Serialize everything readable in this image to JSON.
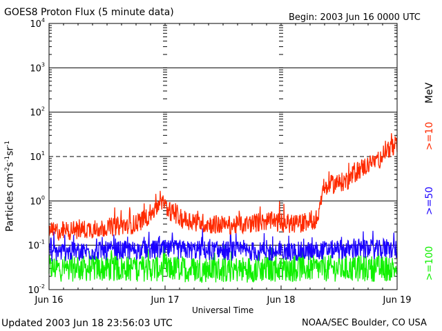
{
  "header": {
    "title": "GOES8 Proton Flux (5 minute data)",
    "begin": "Begin: 2003 Jun 16 0000 UTC"
  },
  "footer": {
    "updated": "Updated 2003 Jun 18 23:56:03 UTC",
    "credit": "NOAA/SEC Boulder, CO USA"
  },
  "chart_data": {
    "type": "line",
    "title": "GOES8 Proton Flux (5 minute data)",
    "xlabel": "Universal Time",
    "ylabel_text": "Particles cm",
    "ylabel_sup": [
      "-2",
      "-1",
      "-1"
    ],
    "ylabel_units": [
      "s",
      "sr"
    ],
    "y_scale": "log",
    "ylim": [
      0.01,
      10000
    ],
    "y_ticks": [
      {
        "base": "10",
        "exp": "4",
        "value": 10000
      },
      {
        "base": "10",
        "exp": "3",
        "value": 1000
      },
      {
        "base": "10",
        "exp": "2",
        "value": 100
      },
      {
        "base": "10",
        "exp": "1",
        "value": 10
      },
      {
        "base": "10",
        "exp": "0",
        "value": 1
      },
      {
        "base": "10",
        "exp": "-1",
        "value": 0.1
      },
      {
        "base": "10",
        "exp": "-2",
        "value": 0.01
      }
    ],
    "xlim": [
      "2003-06-16",
      "2003-06-19"
    ],
    "x_ticks": [
      "Jun 16",
      "Jun 17",
      "Jun 18",
      "Jun 19"
    ],
    "threshold_line": 10,
    "legend_unit": "MeV",
    "series": [
      {
        "name": ">=10",
        "color": "#ff2a00",
        "points": [
          [
            "2003-06-16T00:00",
            0.2
          ],
          [
            "2003-06-16T06:00",
            0.22
          ],
          [
            "2003-06-16T12:00",
            0.25
          ],
          [
            "2003-06-16T18:00",
            0.3
          ],
          [
            "2003-06-16T21:00",
            0.5
          ],
          [
            "2003-06-16T23:00",
            0.9
          ],
          [
            "2003-06-17T03:00",
            0.4
          ],
          [
            "2003-06-17T09:00",
            0.3
          ],
          [
            "2003-06-17T15:00",
            0.28
          ],
          [
            "2003-06-17T21:00",
            0.35
          ],
          [
            "2003-06-18T03:00",
            0.3
          ],
          [
            "2003-06-18T06:00",
            0.35
          ],
          [
            "2003-06-18T07:30",
            0.4
          ],
          [
            "2003-06-18T08:30",
            1.5
          ],
          [
            "2003-06-18T10:00",
            2.3
          ],
          [
            "2003-06-18T12:00",
            2.5
          ],
          [
            "2003-06-18T14:00",
            3.0
          ],
          [
            "2003-06-18T16:00",
            5.0
          ],
          [
            "2003-06-18T18:00",
            6.5
          ],
          [
            "2003-06-18T20:00",
            8.0
          ],
          [
            "2003-06-18T22:00",
            15.0
          ],
          [
            "2003-06-18T24:00",
            16.0
          ]
        ]
      },
      {
        "name": ">=50",
        "color": "#1a00ff",
        "points": [
          [
            "2003-06-16T00:00",
            0.07
          ],
          [
            "2003-06-16T12:00",
            0.075
          ],
          [
            "2003-06-17T00:00",
            0.08
          ],
          [
            "2003-06-17T12:00",
            0.075
          ],
          [
            "2003-06-18T00:00",
            0.07
          ],
          [
            "2003-06-18T12:00",
            0.08
          ],
          [
            "2003-06-18T24:00",
            0.08
          ]
        ]
      },
      {
        "name": ">=100",
        "color": "#10f000",
        "points": [
          [
            "2003-06-16T00:00",
            0.03
          ],
          [
            "2003-06-16T12:00",
            0.03
          ],
          [
            "2003-06-17T00:00",
            0.03
          ],
          [
            "2003-06-17T12:00",
            0.028
          ],
          [
            "2003-06-18T00:00",
            0.03
          ],
          [
            "2003-06-18T12:00",
            0.03
          ],
          [
            "2003-06-18T24:00",
            0.03
          ]
        ]
      }
    ]
  }
}
